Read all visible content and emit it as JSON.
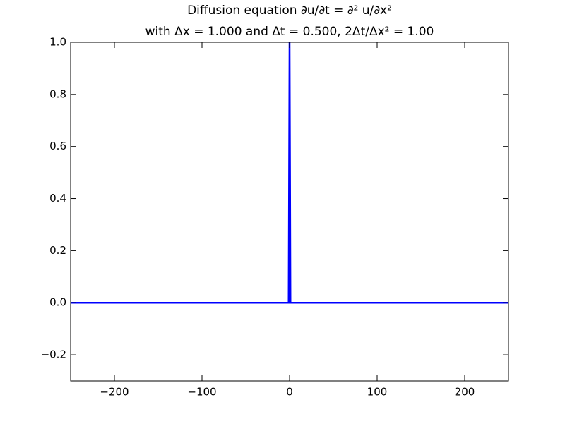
{
  "chart_data": {
    "type": "line",
    "title": "Diffusion equation ∂u/∂t = ∂² u/∂x²",
    "subtitle": "with Δx = 1.000 and Δt = 0.500, 2Δt/Δx² = 1.00",
    "x": [
      -250,
      -1,
      0,
      1,
      250
    ],
    "series": [
      {
        "color": "#0000ff",
        "values": [
          0,
          0,
          1,
          0,
          0
        ]
      }
    ],
    "xlim": [
      -250,
      250
    ],
    "xticks": [
      {
        "value": -200,
        "label": "−200"
      },
      {
        "value": -100,
        "label": "−100"
      },
      0,
      100,
      200
    ],
    "ylim": [
      -0.3,
      1.0
    ],
    "yticks": [
      {
        "value": -0.2,
        "label": "−0.2"
      },
      {
        "value": 0,
        "label": "0.0"
      },
      {
        "value": 0.2,
        "label": "0.2"
      },
      {
        "value": 0.4,
        "label": "0.4"
      },
      {
        "value": 0.6,
        "label": "0.6"
      },
      {
        "value": 0.8,
        "label": "0.8"
      },
      {
        "value": 1,
        "label": "1.0"
      }
    ],
    "grid": false
  }
}
